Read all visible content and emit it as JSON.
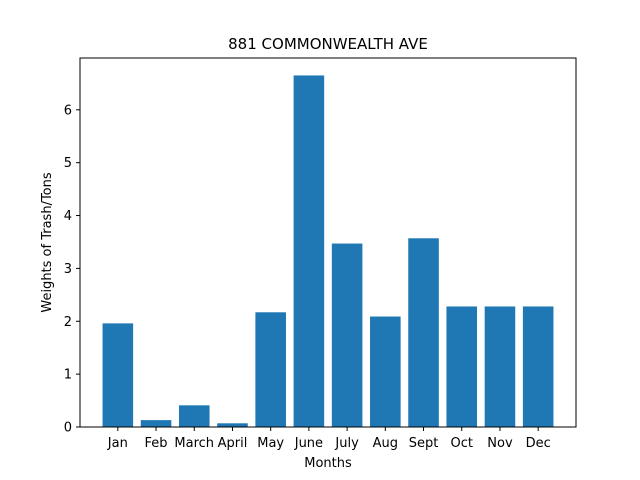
{
  "chart_data": {
    "type": "bar",
    "title": "881 COMMONWEALTH AVE",
    "xlabel": "Months",
    "ylabel": "Weights of Trash/Tons",
    "categories": [
      "Jan",
      "Feb",
      "March",
      "April",
      "May",
      "June",
      "July",
      "Aug",
      "Sept",
      "Oct",
      "Nov",
      "Dec"
    ],
    "values": [
      1.96,
      0.13,
      0.41,
      0.07,
      2.17,
      6.65,
      3.47,
      2.09,
      3.57,
      2.28,
      2.28,
      2.28
    ],
    "ylim": [
      0,
      6.98
    ],
    "yticks": [
      0,
      1,
      2,
      3,
      4,
      5,
      6
    ],
    "grid": false,
    "bar_color": "#1f77b4"
  }
}
